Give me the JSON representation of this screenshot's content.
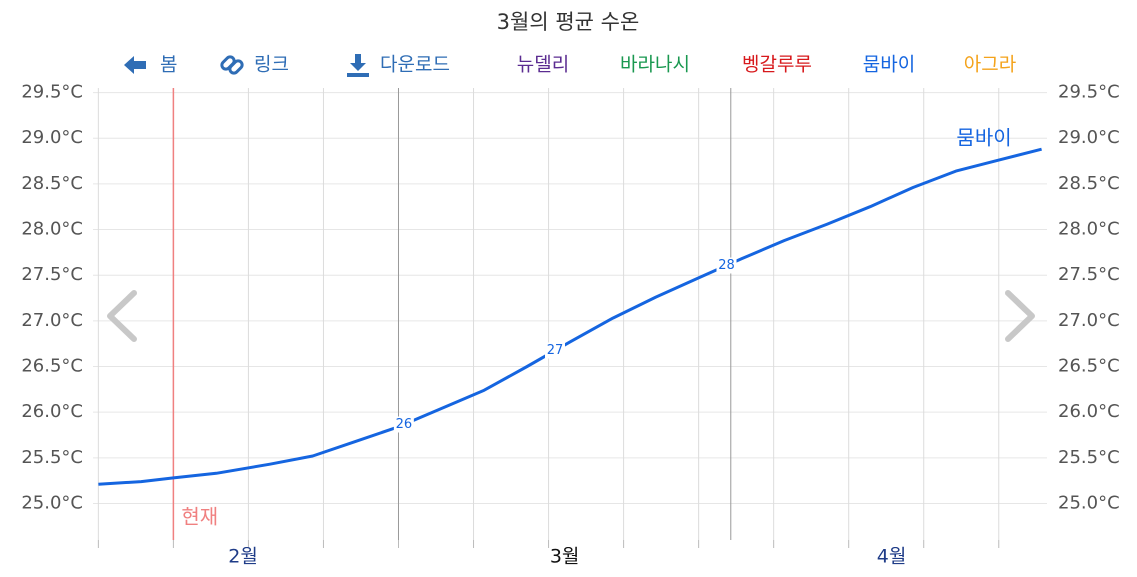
{
  "toolbar": [
    "봄",
    "링크",
    "다운로드"
  ],
  "chart_data": {
    "type": "line",
    "title": "3월의 평균 수온",
    "legend": [
      {
        "name": "뉴델리",
        "color": "#5b2c91"
      },
      {
        "name": "바라나시",
        "color": "#1a9850"
      },
      {
        "name": "벵갈루루",
        "color": "#d7191c"
      },
      {
        "name": "뭄바이",
        "color": "#1565e0"
      },
      {
        "name": "아그라",
        "color": "#f4a31b"
      }
    ],
    "x": [
      0,
      4,
      7,
      11,
      16,
      20,
      24,
      28,
      32,
      36,
      40,
      44,
      48,
      52,
      56,
      60,
      64,
      68,
      72,
      76,
      80,
      84,
      88
    ],
    "series": [
      {
        "name": "뭄바이",
        "color": "#1565e0",
        "values": [
          25.21,
          25.24,
          25.28,
          25.33,
          25.43,
          25.52,
          25.68,
          25.84,
          26.04,
          26.24,
          26.5,
          26.77,
          27.03,
          27.26,
          27.47,
          27.68,
          27.88,
          28.06,
          28.25,
          28.46,
          28.64,
          28.76,
          28.88
        ]
      }
    ],
    "point_labels": [
      {
        "x": 28.5,
        "value": 26
      },
      {
        "x": 42.6,
        "value": 27
      },
      {
        "x": 58.6,
        "value": 28
      }
    ],
    "now": {
      "x": 7,
      "label": "현재",
      "color": "#f08080"
    },
    "xlim": [
      -0.5,
      88.5
    ],
    "xticks": [
      {
        "value": 13.5,
        "label": "2월"
      },
      {
        "value": 43.5,
        "label": "3월"
      },
      {
        "value": 74,
        "label": "4월"
      }
    ],
    "xgrid": [
      0,
      7,
      14,
      21,
      28,
      35,
      42,
      49,
      56,
      63,
      70,
      77,
      84
    ],
    "month_starts": [
      28,
      59
    ],
    "ylim": [
      24.6,
      29.55
    ],
    "yticks": [
      {
        "value": 25,
        "label": "25.0°C"
      },
      {
        "value": 25.5,
        "label": "25.5°C"
      },
      {
        "value": 26,
        "label": "26.0°C"
      },
      {
        "value": 26.5,
        "label": "26.5°C"
      },
      {
        "value": 27,
        "label": "27.0°C"
      },
      {
        "value": 27.5,
        "label": "27.5°C"
      },
      {
        "value": 28,
        "label": "28.0°C"
      },
      {
        "value": 28.5,
        "label": "28.5°C"
      },
      {
        "value": 29,
        "label": "29.0°C"
      },
      {
        "value": 29.5,
        "label": "29.5°C"
      }
    ],
    "grid": true
  }
}
